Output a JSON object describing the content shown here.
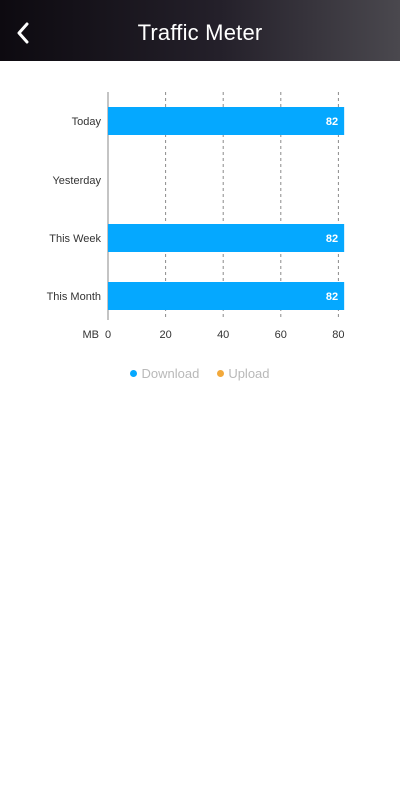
{
  "header": {
    "title": "Traffic Meter"
  },
  "colors": {
    "download": "#05A8FF",
    "upload": "#F2A93B"
  },
  "chart_data": {
    "type": "bar",
    "orientation": "horizontal",
    "categories": [
      "Today",
      "Yesterday",
      "This Week",
      "This Month"
    ],
    "series": [
      {
        "name": "Download",
        "values": [
          82,
          0,
          82,
          82
        ]
      },
      {
        "name": "Upload",
        "values": [
          0,
          0,
          0,
          0
        ]
      }
    ],
    "data_labels": [
      "82",
      "",
      "82",
      "82"
    ],
    "xlabel": "MB",
    "xticks": [
      "0",
      "20",
      "40",
      "60",
      "80"
    ],
    "xlim": [
      0,
      82
    ],
    "grid": "vertical-dashed",
    "legend_position": "bottom"
  }
}
